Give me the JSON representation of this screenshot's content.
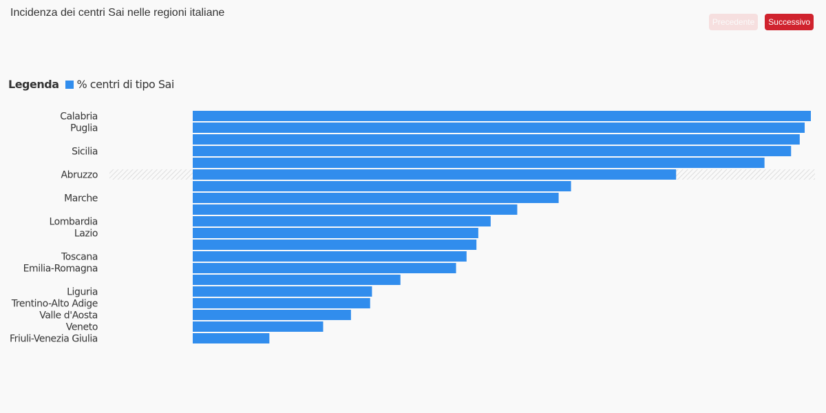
{
  "header": {
    "title": "Incidenza dei centri Sai nelle regioni italiane",
    "prev_label": "Precedente",
    "next_label": "Successivo"
  },
  "legend": {
    "title": "Legenda",
    "label": "% centri di tipo Sai",
    "color": "#318ded"
  },
  "colors": {
    "bar": "#318ded",
    "highlight_hatch": "#dddddd",
    "next_button": "#d0232e",
    "prev_button": "#f6dfdf"
  },
  "chart_data": {
    "type": "bar",
    "orientation": "horizontal",
    "highlighted": "Abruzzo",
    "categories": [
      "Calabria",
      "Puglia",
      "",
      "Sicilia",
      "",
      "Abruzzo",
      "",
      "Marche",
      "",
      "Lombardia",
      "Lazio",
      "",
      "Toscana",
      "Emilia-Romagna",
      "",
      "Liguria",
      "Trentino-Alto Adige",
      "Valle d'Aosta",
      "Veneto",
      "Friuli-Venezia Giulia"
    ],
    "series": [
      {
        "values": [
          100,
          99,
          98.2,
          96.8,
          92.5,
          78.2,
          61.2,
          59.2,
          52.5,
          48.2,
          46.2,
          45.9,
          44.3,
          42.6,
          33.6,
          29,
          28.7,
          25.6,
          21.1,
          12.4
        ]
      }
    ],
    "xlim": [
      0,
      100
    ],
    "grid": false,
    "legend_position": "top-left"
  }
}
